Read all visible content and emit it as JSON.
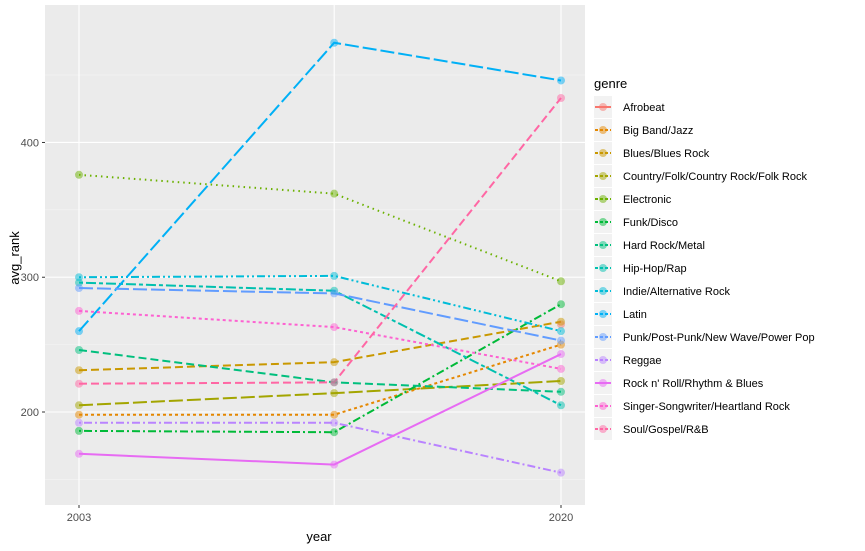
{
  "chart_data": {
    "type": "line",
    "xlabel": "year",
    "ylabel": "avg_rank",
    "x_ticks": [
      "2003",
      "2020"
    ],
    "y_ticks": [
      200,
      300,
      400
    ],
    "xlim": [
      2003,
      2020
    ],
    "ylim": [
      131,
      502
    ],
    "x": [
      2003,
      2012,
      2020
    ],
    "grid": true,
    "legend_position": "right",
    "legend_title": "genre",
    "series": [
      {
        "name": "Afrobeat",
        "color": "#F8766D",
        "dash": "solid",
        "values": [
          null,
          null,
          265
        ]
      },
      {
        "name": "Big Band/Jazz",
        "color": "#E58700",
        "dash": "dot",
        "values": [
          198,
          198,
          250
        ]
      },
      {
        "name": "Blues/Blues Rock",
        "color": "#C99800",
        "dash": "dash",
        "values": [
          231,
          237,
          267
        ]
      },
      {
        "name": "Country/Folk/Country Rock/Folk Rock",
        "color": "#A3A500",
        "dash": "longdash",
        "values": [
          205,
          214,
          223
        ]
      },
      {
        "name": "Electronic",
        "color": "#6BB100",
        "dash": "dotted",
        "values": [
          376,
          362,
          297
        ]
      },
      {
        "name": "Funk/Disco",
        "color": "#00BA38",
        "dash": "dotdash",
        "values": [
          186,
          185,
          280
        ]
      },
      {
        "name": "Hard Rock/Metal",
        "color": "#00BF7D",
        "dash": "dash",
        "values": [
          246,
          222,
          215
        ]
      },
      {
        "name": "Hip-Hop/Rap",
        "color": "#00C0AF",
        "dash": "twodash",
        "values": [
          296,
          290,
          205
        ]
      },
      {
        "name": "Indie/Alternative Rock",
        "color": "#00BCD8",
        "dash": "dotdash2",
        "values": [
          300,
          301,
          260
        ]
      },
      {
        "name": "Latin",
        "color": "#00B0F6",
        "dash": "longdash",
        "values": [
          260,
          474,
          446
        ]
      },
      {
        "name": "Punk/Post-Punk/New Wave/Power Pop",
        "color": "#619CFF",
        "dash": "longdash",
        "values": [
          292,
          288,
          253
        ]
      },
      {
        "name": "Reggae",
        "color": "#B983FF",
        "dash": "dotdash",
        "values": [
          192,
          192,
          155
        ]
      },
      {
        "name": "Rock n' Roll/Rhythm & Blues",
        "color": "#E76BF3",
        "dash": "solid",
        "values": [
          169,
          161,
          243
        ]
      },
      {
        "name": "Singer-Songwriter/Heartland Rock",
        "color": "#FD61D1",
        "dash": "dot",
        "values": [
          275,
          263,
          232
        ]
      },
      {
        "name": "Soul/Gospel/R&B",
        "color": "#FF67A4",
        "dash": "dash",
        "values": [
          221,
          222,
          433
        ]
      }
    ]
  }
}
